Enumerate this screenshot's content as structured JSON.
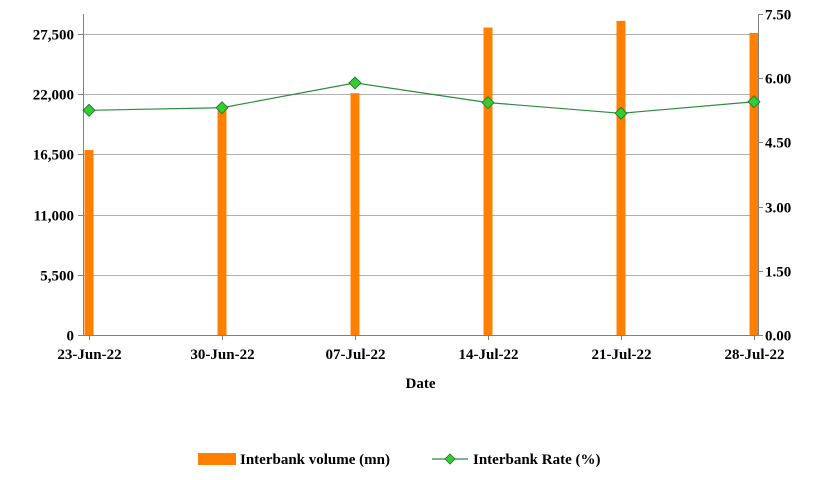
{
  "chart_data": {
    "type": "bar",
    "categories": [
      "23-Jun-22",
      "30-Jun-22",
      "07-Jul-22",
      "14-Jul-22",
      "21-Jul-22",
      "28-Jul-22"
    ],
    "xlabel": "Date",
    "series": [
      {
        "name": "Interbank volume (mn)",
        "type": "bar",
        "axis": "left",
        "color": "#ff8000",
        "values": [
          16900,
          21000,
          22100,
          28100,
          28700,
          27600
        ]
      },
      {
        "name": "Interbank Rate (%)",
        "type": "line",
        "axis": "right",
        "color": "#2e8b3e",
        "marker_color": "#33cc33",
        "values": [
          5.25,
          5.31,
          5.89,
          5.43,
          5.18,
          5.45
        ]
      }
    ],
    "y_left": {
      "ticks": [
        0,
        5500,
        11000,
        16500,
        22000,
        27500
      ],
      "tick_labels": [
        "0",
        "5,500",
        "11,000",
        "16,500",
        "22,000",
        "27,500"
      ],
      "ylim": [
        0,
        29333
      ]
    },
    "y_right": {
      "ticks": [
        0,
        1.5,
        3,
        4.5,
        6,
        7.5
      ],
      "tick_labels": [
        "0.00",
        "1.50",
        "3.00",
        "4.50",
        "6.00",
        "7.50"
      ],
      "ylim": [
        0,
        7.5
      ]
    },
    "grid": true,
    "legend_position": "bottom"
  }
}
